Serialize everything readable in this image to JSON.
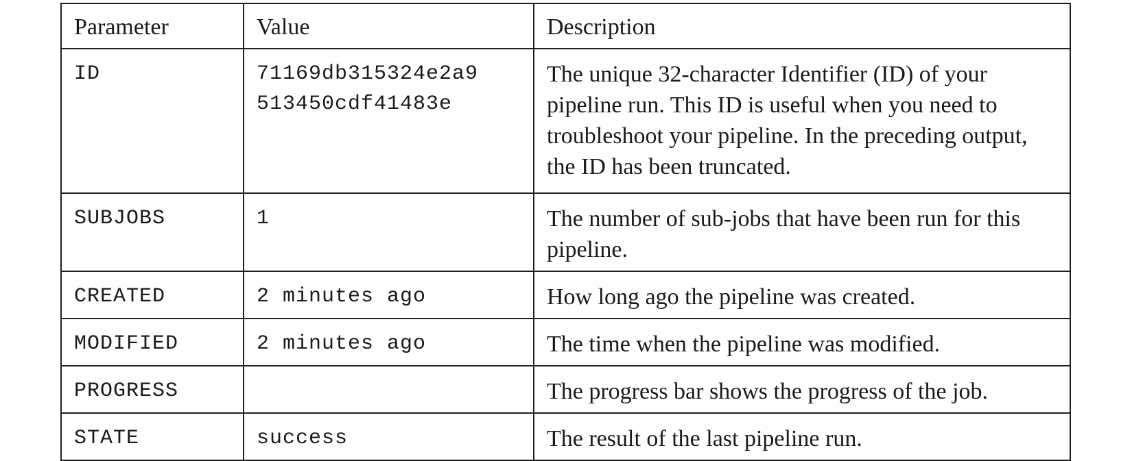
{
  "table": {
    "headers": {
      "parameter": "Parameter",
      "value": "Value",
      "description": "Description"
    },
    "rows": [
      {
        "parameter": "ID",
        "value": "71169db315324e2a9\n513450cdf41483e",
        "description": "The unique 32-character Identifier (ID) of your pipeline run. This ID is useful when you need to troubleshoot your pipeline. In the preceding output, the ID has been truncated."
      },
      {
        "parameter": "SUBJOBS",
        "value": "1",
        "description": "The number of sub-jobs that have been run for this pipeline."
      },
      {
        "parameter": "CREATED",
        "value": "2 minutes ago",
        "description": "How long ago the pipeline was created."
      },
      {
        "parameter": "MODIFIED",
        "value": "2 minutes ago",
        "description": "The time when the pipeline was modified."
      },
      {
        "parameter": "PROGRESS",
        "value": "",
        "description": "The progress bar shows the progress of the job."
      },
      {
        "parameter": "STATE",
        "value": "success",
        "description": "The result of the last pipeline run."
      }
    ]
  }
}
